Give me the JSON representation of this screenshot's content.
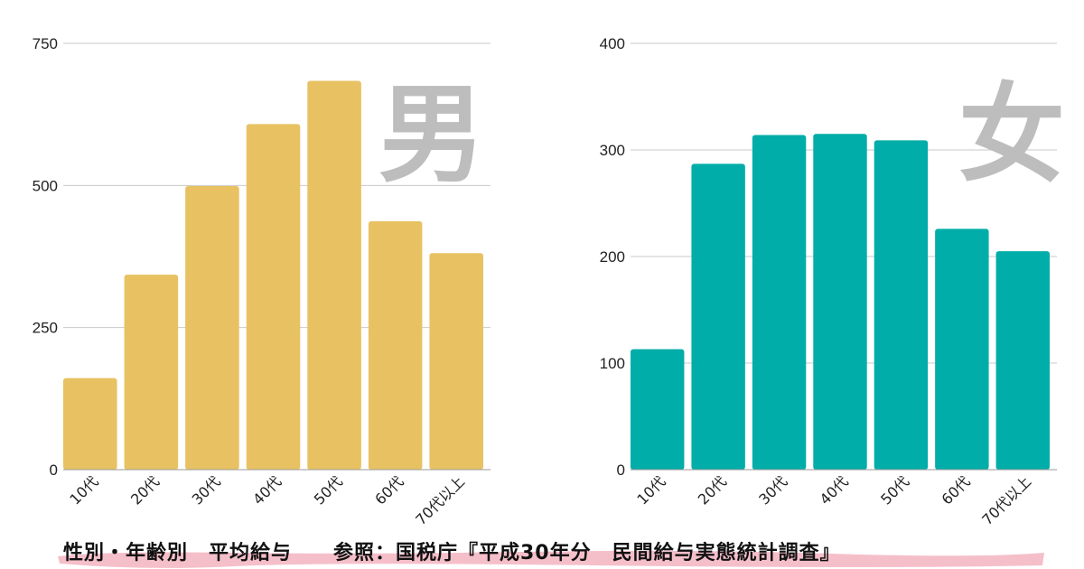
{
  "chart_data": [
    {
      "type": "bar",
      "title": "",
      "xlabel": "",
      "ylabel": "",
      "categories": [
        "10代",
        "20代",
        "30代",
        "40代",
        "50代",
        "60代",
        "70代以上"
      ],
      "values": [
        161,
        343,
        499,
        608,
        684,
        437,
        381
      ],
      "ylim": [
        0,
        750
      ],
      "yticks": [
        0,
        250,
        500,
        750
      ],
      "grid": true,
      "annotation": "男",
      "bar_color": "#e8c262"
    },
    {
      "type": "bar",
      "title": "",
      "xlabel": "",
      "ylabel": "",
      "categories": [
        "10代",
        "20代",
        "30代",
        "40代",
        "50代",
        "60代",
        "70代以上"
      ],
      "values": [
        113,
        287,
        314,
        315,
        309,
        226,
        205
      ],
      "ylim": [
        0,
        400
      ],
      "yticks": [
        0,
        100,
        200,
        300,
        400
      ],
      "grid": true,
      "annotation": "女",
      "bar_color": "#00ada8"
    }
  ],
  "caption": {
    "text": "性別・年齢別　平均給与　　参照：国税庁『平成30年分　民間給与実態統計調査』",
    "highlight_color": "#f4b8c4"
  },
  "colors": {
    "gridline": "#c9c9c9",
    "watermark": "#bdbdbd"
  }
}
